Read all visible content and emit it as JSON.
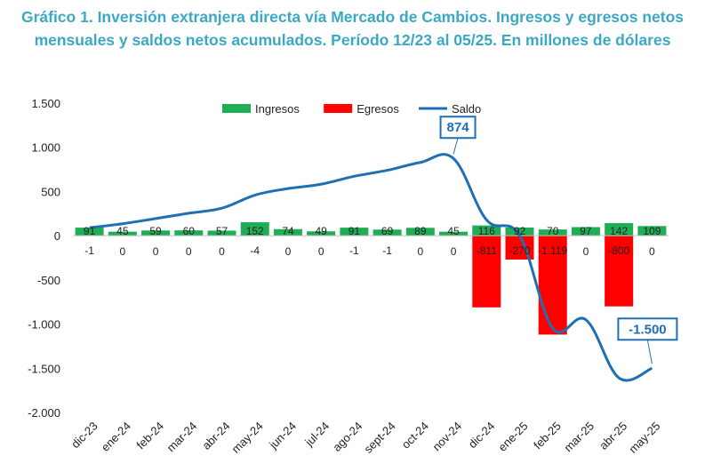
{
  "chart_data": {
    "type": "bar",
    "title": "Gráfico 1. Inversión extranjera directa vía Mercado de Cambios. Ingresos y egresos netos mensuales y saldos netos acumulados. Período 12/23 al 05/25. En millones de dólares",
    "xlabel": "",
    "ylabel": "",
    "ylim": [
      -2000,
      1500
    ],
    "yticks": [
      1500,
      1000,
      500,
      0,
      -500,
      -1000,
      -1500,
      -2000
    ],
    "ytick_labels": [
      "1.500",
      "1.000",
      "500",
      "0",
      "-500",
      "-1.000",
      "-1.500",
      "-2.000"
    ],
    "categories": [
      "dic-23",
      "ene-24",
      "feb-24",
      "mar-24",
      "abr-24",
      "may-24",
      "jun-24",
      "jul-24",
      "ago-24",
      "sept-24",
      "oct-24",
      "nov-24",
      "dic-24",
      "ene-25",
      "feb-25",
      "mar-25",
      "abr-25",
      "may-25"
    ],
    "legend_position": "top",
    "grid": false,
    "series": [
      {
        "name": "Ingresos",
        "kind": "bar",
        "color": "#1FAE55",
        "values": [
          91,
          45,
          59,
          60,
          57,
          152,
          74,
          49,
          91,
          69,
          89,
          45,
          116,
          92,
          70,
          97,
          142,
          109
        ],
        "labels": [
          "91",
          "45",
          "59",
          "60",
          "57",
          "152",
          "74",
          "49",
          "91",
          "69",
          "89",
          "45",
          "116",
          "92",
          "70",
          "97",
          "142",
          "109"
        ]
      },
      {
        "name": "Egresos",
        "kind": "bar",
        "color": "#FF0000",
        "values": [
          -1,
          0,
          0,
          0,
          0,
          -4,
          0,
          0,
          -1,
          -1,
          0,
          0,
          -811,
          -270,
          -1119,
          0,
          -800,
          0
        ],
        "labels": [
          "-1",
          "0",
          "0",
          "0",
          "0",
          "-4",
          "0",
          "0",
          "-1",
          "-1",
          "0",
          "0",
          "-811",
          "-270",
          "-1.119",
          "0",
          "-800",
          "0"
        ]
      },
      {
        "name": "Saldo",
        "kind": "line",
        "color": "#1F6FB3",
        "values": [
          90,
          135,
          194,
          254,
          311,
          459,
          533,
          582,
          672,
          740,
          829,
          874,
          179,
          1,
          -1048,
          -951,
          -1609,
          -1500
        ]
      }
    ],
    "annotations": [
      {
        "category": "nov-24",
        "text": "874"
      },
      {
        "category": "may-25",
        "text": "-1.500"
      }
    ]
  }
}
